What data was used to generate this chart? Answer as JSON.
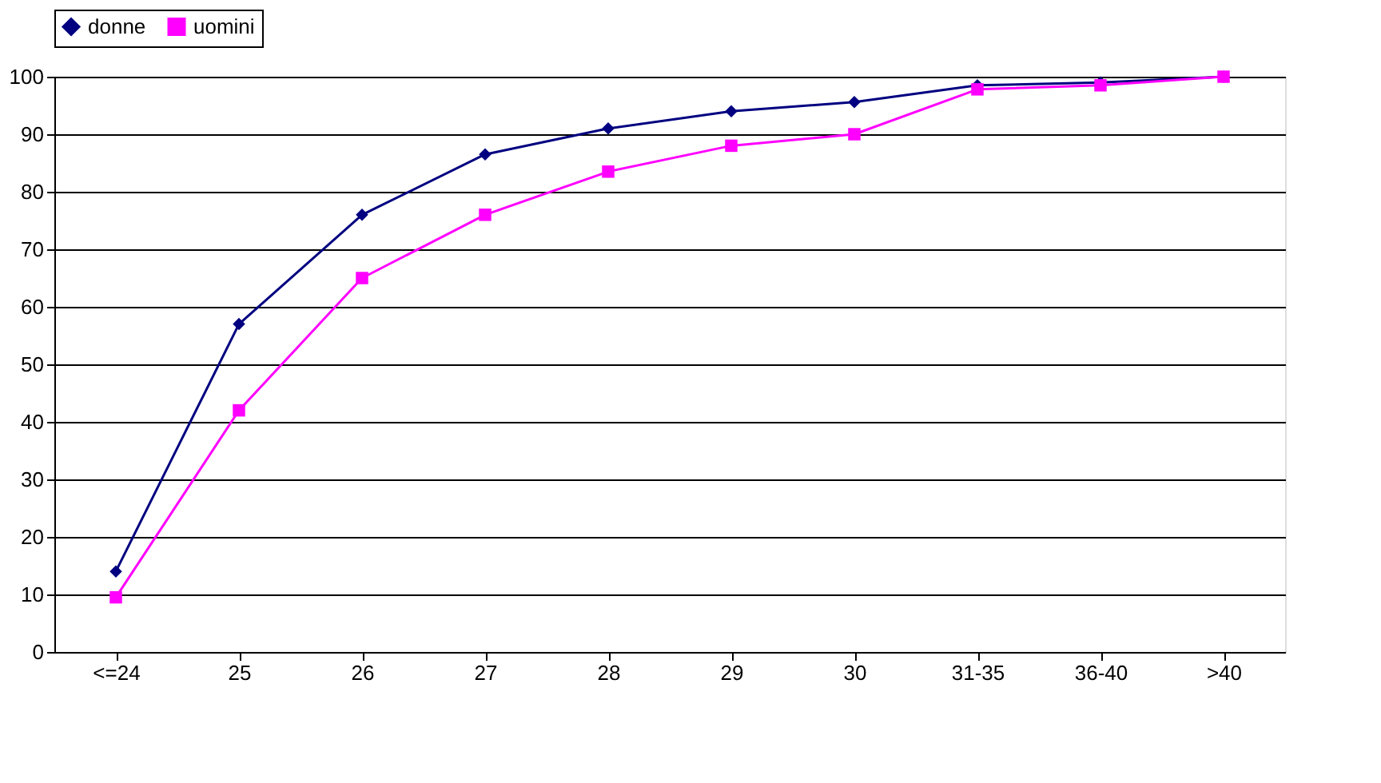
{
  "chart_data": {
    "type": "line",
    "categories": [
      "<=24",
      "25",
      "26",
      "27",
      "28",
      "29",
      "30",
      "31-35",
      "36-40",
      ">40"
    ],
    "series": [
      {
        "name": "donne",
        "color": "#000080",
        "marker": "diamond",
        "values": [
          14,
          57,
          76,
          86.5,
          91,
          94,
          95.6,
          98.5,
          99,
          100
        ]
      },
      {
        "name": "uomini",
        "color": "#ff00ff",
        "marker": "square",
        "values": [
          9.5,
          42,
          65,
          76,
          83.5,
          88,
          90,
          97.8,
          98.5,
          100
        ]
      }
    ],
    "ylim": [
      0,
      100
    ],
    "yticks": [
      0,
      10,
      20,
      30,
      40,
      50,
      60,
      70,
      80,
      90,
      100
    ],
    "grid": "y",
    "legend": "top",
    "line_style": "solid"
  }
}
